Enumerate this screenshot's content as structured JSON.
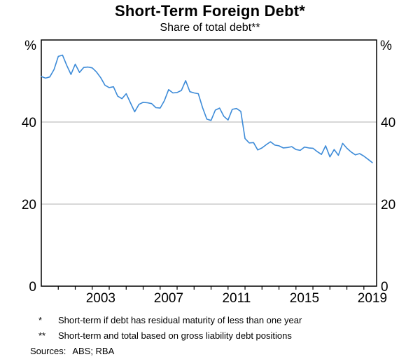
{
  "chart_data": {
    "type": "line",
    "title": "Short-Term Foreign Debt*",
    "subtitle": "Share of total debt**",
    "ylabel_left": "%",
    "ylabel_right": "%",
    "xlim": [
      2000,
      2019.75
    ],
    "ylim": [
      0,
      60
    ],
    "yticks": [
      0,
      20,
      40
    ],
    "xtick_labels": [
      2003,
      2007,
      2011,
      2015,
      2019
    ],
    "xticks_minor": {
      "start": 2001,
      "end": 2019,
      "step": 1
    },
    "grid": "horizontal",
    "legend": "none",
    "line_color": "#3D8BD8",
    "grid_color": "#b0b0b0",
    "frame_color": "#000000",
    "series": [
      {
        "name": "Short-term foreign debt share of total debt",
        "frequency": "quarterly",
        "x": [
          2000,
          2000.25,
          2000.5,
          2000.75,
          2001,
          2001.25,
          2001.5,
          2001.75,
          2002,
          2002.25,
          2002.5,
          2002.75,
          2003,
          2003.25,
          2003.5,
          2003.75,
          2004,
          2004.25,
          2004.5,
          2004.75,
          2005,
          2005.25,
          2005.5,
          2005.75,
          2006,
          2006.25,
          2006.5,
          2006.75,
          2007,
          2007.25,
          2007.5,
          2007.75,
          2008,
          2008.25,
          2008.5,
          2008.75,
          2009,
          2009.25,
          2009.5,
          2009.75,
          2010,
          2010.25,
          2010.5,
          2010.75,
          2011,
          2011.25,
          2011.5,
          2011.75,
          2012,
          2012.25,
          2012.5,
          2012.75,
          2013,
          2013.25,
          2013.5,
          2013.75,
          2014,
          2014.25,
          2014.5,
          2014.75,
          2015,
          2015.25,
          2015.5,
          2015.75,
          2016,
          2016.25,
          2016.5,
          2016.75,
          2017,
          2017.25,
          2017.5,
          2017.75,
          2018,
          2018.25,
          2018.5,
          2018.75,
          2019,
          2019.25,
          2019.5
        ],
        "values": [
          51.1,
          50.7,
          51.0,
          52.8,
          56.0,
          56.3,
          53.8,
          51.6,
          54.1,
          52.1,
          53.3,
          53.4,
          53.2,
          52.2,
          50.8,
          49.0,
          48.4,
          48.6,
          46.3,
          45.7,
          46.9,
          44.7,
          42.5,
          44.3,
          44.8,
          44.7,
          44.5,
          43.5,
          43.4,
          45.2,
          47.9,
          47.1,
          47.2,
          47.7,
          50.1,
          47.4,
          47.1,
          46.9,
          43.5,
          40.7,
          40.4,
          42.9,
          43.4,
          41.4,
          40.5,
          43.1,
          43.3,
          42.6,
          36.0,
          34.9,
          35.0,
          33.2,
          33.7,
          34.5,
          35.2,
          34.4,
          34.2,
          33.7,
          33.8,
          34.0,
          33.3,
          33.1,
          33.9,
          33.7,
          33.6,
          32.8,
          32.1,
          34.2,
          31.5,
          33.3,
          31.9,
          34.8,
          33.6,
          32.7,
          32.0,
          32.3,
          31.7,
          30.9,
          30.1
        ]
      }
    ]
  },
  "footnotes": [
    {
      "marker": "*",
      "text": "Short-term if debt has residual maturity of less than one year"
    },
    {
      "marker": "**",
      "text": "Short-term and total based on gross liability debt positions"
    }
  ],
  "sources": {
    "label": "Sources:",
    "text": "ABS; RBA"
  }
}
